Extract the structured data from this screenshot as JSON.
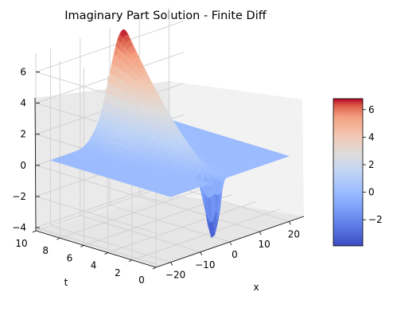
{
  "chart_data": {
    "type": "surface",
    "title": "Imaginary Part Solution - Finite Diff",
    "xlabel": "x",
    "ylabel": "t",
    "zlabel": "",
    "colormap": "coolwarm",
    "xlim": [
      -25,
      25
    ],
    "ylim": [
      0,
      10
    ],
    "zlim": [
      -4.2,
      7.2
    ],
    "x_ticks": [
      -20,
      -10,
      0,
      10,
      20
    ],
    "t_ticks": [
      0,
      2,
      4,
      6,
      8,
      10
    ],
    "z_ticks": [
      -4,
      -2,
      0,
      2,
      4,
      6
    ],
    "z_tick_labels": [
      "−4",
      "−2",
      "0",
      "2",
      "4",
      "6"
    ],
    "x_tick_labels": [
      "−20",
      "−10",
      "0",
      "10",
      "20"
    ],
    "t_tick_labels": [
      "0",
      "2",
      "4",
      "6",
      "8",
      "10"
    ],
    "surface_peak": {
      "x": 4.5,
      "t": 10,
      "z": 6.8
    },
    "surface_trough": {
      "x": -4,
      "t": 0.5,
      "z": -3.9
    },
    "colorbar": {
      "range": [
        -3.9,
        6.8
      ],
      "ticks": [
        -2,
        0,
        2,
        4,
        6
      ],
      "tick_labels": [
        "−2",
        "0",
        "2",
        "4",
        "6"
      ]
    },
    "grid": true
  }
}
